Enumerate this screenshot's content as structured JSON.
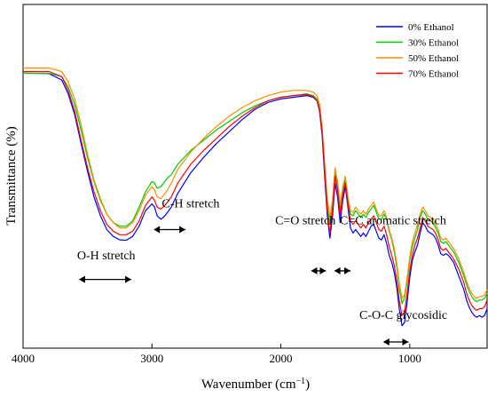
{
  "chart_data": {
    "type": "line",
    "xlabel": "Wavenumber (cm",
    "xlabel_sup": "−1",
    "xlabel_close": ")",
    "ylabel": "Transmittance (%)",
    "xlim": [
      4000,
      400
    ],
    "x_reversed": true,
    "y_ticks_labeled": false,
    "x_ticks": [
      4000,
      3000,
      2000,
      1000
    ],
    "grid": false,
    "legend_position": "top-right",
    "series": [
      {
        "name": "0% Ethanol",
        "color": "#0000ff",
        "x": [
          4000,
          3800,
          3700,
          3650,
          3600,
          3550,
          3500,
          3450,
          3400,
          3350,
          3300,
          3250,
          3200,
          3150,
          3100,
          3050,
          3000,
          2980,
          2960,
          2930,
          2900,
          2880,
          2850,
          2800,
          2700,
          2600,
          2500,
          2400,
          2300,
          2200,
          2100,
          2000,
          1900,
          1800,
          1750,
          1720,
          1700,
          1680,
          1660,
          1640,
          1620,
          1600,
          1580,
          1560,
          1540,
          1520,
          1500,
          1480,
          1460,
          1440,
          1420,
          1400,
          1380,
          1360,
          1340,
          1320,
          1300,
          1280,
          1260,
          1240,
          1220,
          1200,
          1180,
          1160,
          1140,
          1120,
          1100,
          1080,
          1060,
          1040,
          1020,
          1000,
          980,
          960,
          940,
          920,
          900,
          880,
          860,
          840,
          820,
          800,
          780,
          760,
          740,
          720,
          700,
          680,
          660,
          640,
          620,
          600,
          580,
          560,
          540,
          520,
          500,
          480,
          460,
          440,
          420,
          400
        ],
        "y": [
          80.0,
          79.9,
          78.0,
          74.0,
          68.0,
          59.5,
          51.5,
          44.0,
          38.5,
          34.5,
          32.5,
          31.5,
          31.4,
          32.5,
          35.5,
          40.0,
          42.0,
          41.0,
          38.5,
          37.5,
          38.5,
          39.5,
          41.0,
          45.0,
          51.0,
          55.5,
          59.5,
          63.0,
          66.5,
          69.5,
          71.5,
          72.5,
          73.0,
          73.5,
          73.0,
          72.0,
          69.0,
          62.0,
          50.0,
          38.5,
          32.0,
          38.0,
          48.0,
          44.0,
          36.5,
          43.0,
          47.0,
          41.0,
          35.0,
          33.5,
          34.5,
          33.5,
          32.5,
          33.5,
          32.5,
          34.0,
          35.5,
          36.0,
          34.0,
          32.0,
          31.5,
          33.0,
          30.5,
          27.0,
          25.0,
          22.0,
          17.5,
          11.0,
          6.5,
          7.5,
          13.5,
          20.5,
          25.5,
          28.0,
          30.0,
          33.5,
          36.5,
          35.5,
          34.0,
          33.5,
          33.0,
          32.0,
          30.0,
          27.5,
          27.0,
          27.5,
          27.0,
          26.0,
          25.0,
          23.0,
          21.0,
          19.0,
          17.0,
          14.0,
          12.0,
          10.5,
          9.5,
          9.0,
          9.5,
          9.0,
          9.5,
          11.5
        ]
      },
      {
        "name": "30% Ethanol",
        "color": "#00cc00",
        "x": [
          4000,
          3800,
          3700,
          3650,
          3600,
          3550,
          3500,
          3450,
          3400,
          3350,
          3300,
          3250,
          3200,
          3150,
          3100,
          3050,
          3000,
          2980,
          2960,
          2930,
          2900,
          2880,
          2850,
          2800,
          2700,
          2600,
          2500,
          2400,
          2300,
          2200,
          2100,
          2000,
          1900,
          1800,
          1750,
          1720,
          1700,
          1680,
          1660,
          1640,
          1620,
          1600,
          1580,
          1560,
          1540,
          1520,
          1500,
          1480,
          1460,
          1440,
          1420,
          1400,
          1380,
          1360,
          1340,
          1320,
          1300,
          1280,
          1260,
          1240,
          1220,
          1200,
          1180,
          1160,
          1140,
          1120,
          1100,
          1080,
          1060,
          1040,
          1020,
          1000,
          980,
          960,
          940,
          920,
          900,
          880,
          860,
          840,
          820,
          800,
          780,
          760,
          740,
          720,
          700,
          680,
          660,
          640,
          620,
          600,
          580,
          560,
          540,
          520,
          500,
          480,
          460,
          440,
          420,
          400
        ],
        "y": [
          80.0,
          80.0,
          79.0,
          76.0,
          71.0,
          63.5,
          55.5,
          48.5,
          43.0,
          39.0,
          36.5,
          35.5,
          35.5,
          37.0,
          41.0,
          45.5,
          48.5,
          48.0,
          46.5,
          47.0,
          48.5,
          49.5,
          50.5,
          53.5,
          57.5,
          60.5,
          63.5,
          66.0,
          68.5,
          70.5,
          72.0,
          73.0,
          73.5,
          74.0,
          73.5,
          72.5,
          70.0,
          63.0,
          52.0,
          42.0,
          36.0,
          41.0,
          51.0,
          47.0,
          40.0,
          46.0,
          49.0,
          43.0,
          39.0,
          38.5,
          40.0,
          39.0,
          38.0,
          39.0,
          38.0,
          39.5,
          40.5,
          41.5,
          39.5,
          37.5,
          37.5,
          39.0,
          37.5,
          34.0,
          31.5,
          28.0,
          23.5,
          17.0,
          13.0,
          14.5,
          19.5,
          25.5,
          29.5,
          32.0,
          34.5,
          38.0,
          40.0,
          39.0,
          37.5,
          37.0,
          36.5,
          35.0,
          33.5,
          31.0,
          30.5,
          31.0,
          30.0,
          29.0,
          28.0,
          26.5,
          25.0,
          23.0,
          21.0,
          18.5,
          16.5,
          15.0,
          14.0,
          13.5,
          14.0,
          14.0,
          14.5,
          16.0
        ]
      },
      {
        "name": "50% Ethanol",
        "color": "#ff8c00",
        "x": [
          4000,
          3800,
          3700,
          3650,
          3600,
          3550,
          3500,
          3450,
          3400,
          3350,
          3300,
          3250,
          3200,
          3150,
          3100,
          3050,
          3000,
          2980,
          2960,
          2930,
          2900,
          2880,
          2850,
          2800,
          2700,
          2600,
          2500,
          2400,
          2300,
          2200,
          2100,
          2000,
          1900,
          1800,
          1750,
          1720,
          1700,
          1680,
          1660,
          1640,
          1620,
          1600,
          1580,
          1560,
          1540,
          1520,
          1500,
          1480,
          1460,
          1440,
          1420,
          1400,
          1380,
          1360,
          1340,
          1320,
          1300,
          1280,
          1260,
          1240,
          1220,
          1200,
          1180,
          1160,
          1140,
          1120,
          1100,
          1080,
          1060,
          1040,
          1020,
          1000,
          980,
          960,
          940,
          920,
          900,
          880,
          860,
          840,
          820,
          800,
          780,
          760,
          740,
          720,
          700,
          680,
          660,
          640,
          620,
          600,
          580,
          560,
          540,
          520,
          500,
          480,
          460,
          440,
          420,
          400
        ],
        "y": [
          81.5,
          81.5,
          80.5,
          77.5,
          72.5,
          65.0,
          56.5,
          49.0,
          43.5,
          39.0,
          36.5,
          35.0,
          35.0,
          36.5,
          40.0,
          44.5,
          47.0,
          46.0,
          44.0,
          43.5,
          45.0,
          46.0,
          48.0,
          52.0,
          57.0,
          61.0,
          64.5,
          67.5,
          70.0,
          72.0,
          73.5,
          74.5,
          75.0,
          75.0,
          74.5,
          73.5,
          71.0,
          64.5,
          54.0,
          43.5,
          38.0,
          43.0,
          52.5,
          48.5,
          41.5,
          47.0,
          50.0,
          44.0,
          40.0,
          39.5,
          41.0,
          40.0,
          39.0,
          40.0,
          39.0,
          40.5,
          41.5,
          42.5,
          40.5,
          38.5,
          38.5,
          40.0,
          38.0,
          34.5,
          32.0,
          29.0,
          24.5,
          18.5,
          14.5,
          15.5,
          20.5,
          26.5,
          31.0,
          33.5,
          36.0,
          39.0,
          41.0,
          40.0,
          38.5,
          38.0,
          37.5,
          36.0,
          34.5,
          32.0,
          31.5,
          32.0,
          31.0,
          30.0,
          29.0,
          27.5,
          26.0,
          24.0,
          22.0,
          19.5,
          17.5,
          16.0,
          15.0,
          14.5,
          15.0,
          15.0,
          15.5,
          17.0
        ]
      },
      {
        "name": "70% Ethanol",
        "color": "#ff0000",
        "x": [
          4000,
          3800,
          3700,
          3650,
          3600,
          3550,
          3500,
          3450,
          3400,
          3350,
          3300,
          3250,
          3200,
          3150,
          3100,
          3050,
          3000,
          2980,
          2960,
          2930,
          2900,
          2880,
          2850,
          2800,
          2700,
          2600,
          2500,
          2400,
          2300,
          2200,
          2100,
          2000,
          1900,
          1800,
          1750,
          1720,
          1700,
          1680,
          1660,
          1640,
          1620,
          1600,
          1580,
          1560,
          1540,
          1520,
          1500,
          1480,
          1460,
          1440,
          1420,
          1400,
          1380,
          1360,
          1340,
          1320,
          1300,
          1280,
          1260,
          1240,
          1220,
          1200,
          1180,
          1160,
          1140,
          1120,
          1100,
          1080,
          1060,
          1040,
          1020,
          1000,
          980,
          960,
          940,
          920,
          900,
          880,
          860,
          840,
          820,
          800,
          780,
          760,
          740,
          720,
          700,
          680,
          660,
          640,
          620,
          600,
          580,
          560,
          540,
          520,
          500,
          480,
          460,
          440,
          420,
          400
        ],
        "y": [
          80.5,
          80.5,
          79.0,
          75.0,
          69.0,
          60.5,
          52.5,
          45.5,
          40.0,
          36.0,
          34.0,
          33.0,
          33.0,
          34.0,
          37.0,
          41.5,
          44.0,
          43.0,
          41.0,
          40.5,
          41.5,
          42.5,
          44.0,
          48.0,
          53.5,
          57.5,
          61.0,
          64.5,
          67.5,
          70.0,
          72.0,
          73.0,
          73.5,
          73.8,
          73.2,
          72.0,
          69.5,
          63.0,
          51.5,
          40.0,
          33.5,
          39.5,
          50.0,
          46.0,
          38.5,
          44.5,
          48.0,
          42.0,
          37.0,
          36.0,
          37.0,
          36.0,
          35.0,
          36.0,
          35.0,
          36.5,
          37.5,
          38.5,
          36.5,
          34.5,
          34.0,
          35.5,
          33.0,
          29.5,
          27.0,
          24.0,
          19.5,
          13.5,
          9.5,
          10.5,
          16.0,
          22.5,
          27.0,
          30.0,
          32.0,
          35.0,
          38.0,
          37.0,
          35.5,
          35.0,
          34.5,
          33.5,
          31.5,
          29.0,
          28.5,
          29.0,
          28.0,
          27.0,
          26.0,
          24.5,
          23.0,
          21.0,
          19.0,
          16.0,
          14.0,
          12.5,
          11.5,
          11.0,
          11.5,
          11.5,
          12.0,
          14.0
        ]
      }
    ],
    "ylim": [
      0,
      100
    ],
    "annotations": [
      {
        "text": "O-H stretch",
        "x_text": 3355,
        "y_text": 25.8,
        "arrow_from": 3560,
        "arrow_to": 3160,
        "arrow_y": 20.0
      },
      {
        "text": "C-H stretch",
        "x_text": 2700,
        "y_text": 41.0,
        "arrow_from": 2980,
        "arrow_to": 2740,
        "arrow_y": 34.5
      },
      {
        "text": "C=O stretch",
        "x_text": 1810,
        "y_text": 36.0,
        "arrow_from": 1760,
        "arrow_to": 1650,
        "arrow_y": 22.5
      },
      {
        "text": "C=C aromatic stretch",
        "x_text": 1130,
        "y_text": 36.0,
        "arrow_from": 1580,
        "arrow_to": 1460,
        "arrow_y": 22.5
      },
      {
        "text": "C-O-C glycosidic",
        "x_text": 1050,
        "y_text": 8.5,
        "arrow_from": 1200,
        "arrow_to": 1010,
        "arrow_y": 1.8
      }
    ]
  }
}
